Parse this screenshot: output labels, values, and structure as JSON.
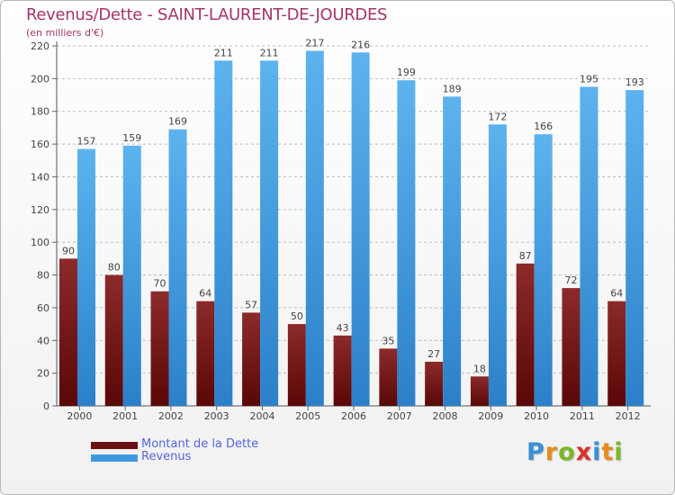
{
  "header": {
    "title": "Revenus/Dette - SAINT-LAURENT-DE-JOURDES",
    "subtitle": "(en milliers d'€)"
  },
  "chart_data": {
    "type": "bar",
    "title": "Revenus/Dette - SAINT-LAURENT-DE-JOURDES",
    "ylabel": "(en milliers d'€)",
    "xlabel": "",
    "ylim": [
      0,
      220
    ],
    "yticks": [
      0,
      20,
      40,
      60,
      80,
      100,
      120,
      140,
      160,
      180,
      200,
      220
    ],
    "grid": "horizontal dashed",
    "categories": [
      "2000",
      "2001",
      "2002",
      "2003",
      "2004",
      "2005",
      "2006",
      "2007",
      "2008",
      "2009",
      "2010",
      "2011",
      "2012"
    ],
    "series": [
      {
        "name": "Montant de la Dette",
        "color": "#7a1a1a",
        "values": [
          90,
          80,
          70,
          64,
          57,
          50,
          43,
          35,
          27,
          18,
          87,
          72,
          64
        ]
      },
      {
        "name": "Revenus",
        "color": "#4aa3e6",
        "values": [
          157,
          159,
          169,
          211,
          211,
          217,
          216,
          199,
          189,
          172,
          166,
          195,
          193
        ]
      }
    ],
    "legend": "bottom-left"
  },
  "legend": {
    "items": [
      {
        "label": "Montant de la Dette",
        "color": "#6b1010"
      },
      {
        "label": "Revenus",
        "color": "#3d9ae0"
      }
    ]
  },
  "logo": {
    "letters": [
      "P",
      "r",
      "o",
      "x",
      "i",
      "t",
      "i"
    ],
    "colors": [
      "#3a8fd8",
      "#e88b1c",
      "#7ab829",
      "#d9302a",
      "#3a8fd8",
      "#e88b1c",
      "#7ab829"
    ]
  }
}
